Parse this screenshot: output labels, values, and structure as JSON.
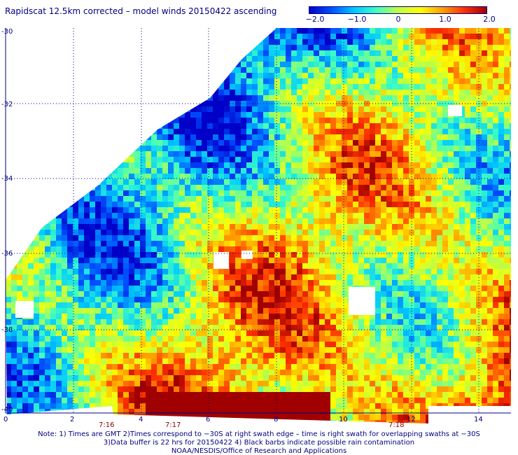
{
  "title": "Rapidscat 12.5km corrected – model winds 20150422 ascending",
  "colorbar": {
    "ticks": [
      "−2.0",
      "−1.0",
      "0",
      "1.0",
      "2.0"
    ],
    "colors": [
      "#0000c8",
      "#0050ff",
      "#00c8ff",
      "#40ffc0",
      "#c0ff40",
      "#ffff00",
      "#ffa000",
      "#ff3000",
      "#a00000"
    ]
  },
  "map": {
    "lat_labels": [
      "-30",
      "-32",
      "-34",
      "-36",
      "-38",
      "-40"
    ],
    "lon_labels": [
      "0",
      "2",
      "4",
      "6",
      "8",
      "10",
      "12",
      "14"
    ],
    "time_labels": [
      "7:16",
      "7:17",
      "7:18"
    ],
    "grid_color": "#000080"
  },
  "notes": {
    "line1": "Note: 1) Times are GMT 2)Times correspond to −30S at right swath edge – time is right swath for overlapping swaths at −30S",
    "line2": "3)Data buffer is 22 hrs for 20150422 4) Black barbs indicate possible rain contamination",
    "line3": "NOAA/NESDIS/Office of Research and Applications"
  }
}
